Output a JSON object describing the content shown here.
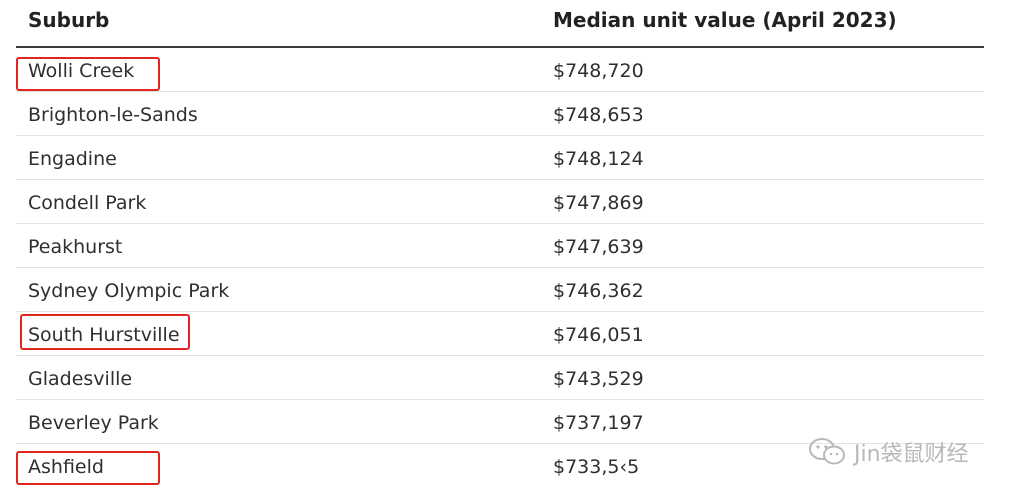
{
  "table": {
    "headers": {
      "suburb": "Suburb",
      "value": "Median unit value (April 2023)"
    },
    "rows": [
      {
        "suburb": "Wolli Creek",
        "value": "$748,720",
        "highlighted": true
      },
      {
        "suburb": "Brighton-le-Sands",
        "value": "$748,653",
        "highlighted": false
      },
      {
        "suburb": "Engadine",
        "value": "$748,124",
        "highlighted": false
      },
      {
        "suburb": "Condell Park",
        "value": "$747,869",
        "highlighted": false
      },
      {
        "suburb": "Peakhurst",
        "value": "$747,639",
        "highlighted": false
      },
      {
        "suburb": "Sydney Olympic Park",
        "value": "$746,362",
        "highlighted": false
      },
      {
        "suburb": "South Hurstville",
        "value": "$746,051",
        "highlighted": true
      },
      {
        "suburb": "Gladesville",
        "value": "$743,529",
        "highlighted": false
      },
      {
        "suburb": "Beverley Park",
        "value": "$737,197",
        "highlighted": false
      },
      {
        "suburb": "Ashfield",
        "value": "$733,5‹5",
        "highlighted": true
      }
    ]
  },
  "watermark": {
    "text": "Jin袋鼠财经",
    "icon": "wechat-icon"
  },
  "colors": {
    "highlight": "#e0261f",
    "header_rule": "#3a3a3a",
    "row_divider": "#e3e3e3"
  }
}
